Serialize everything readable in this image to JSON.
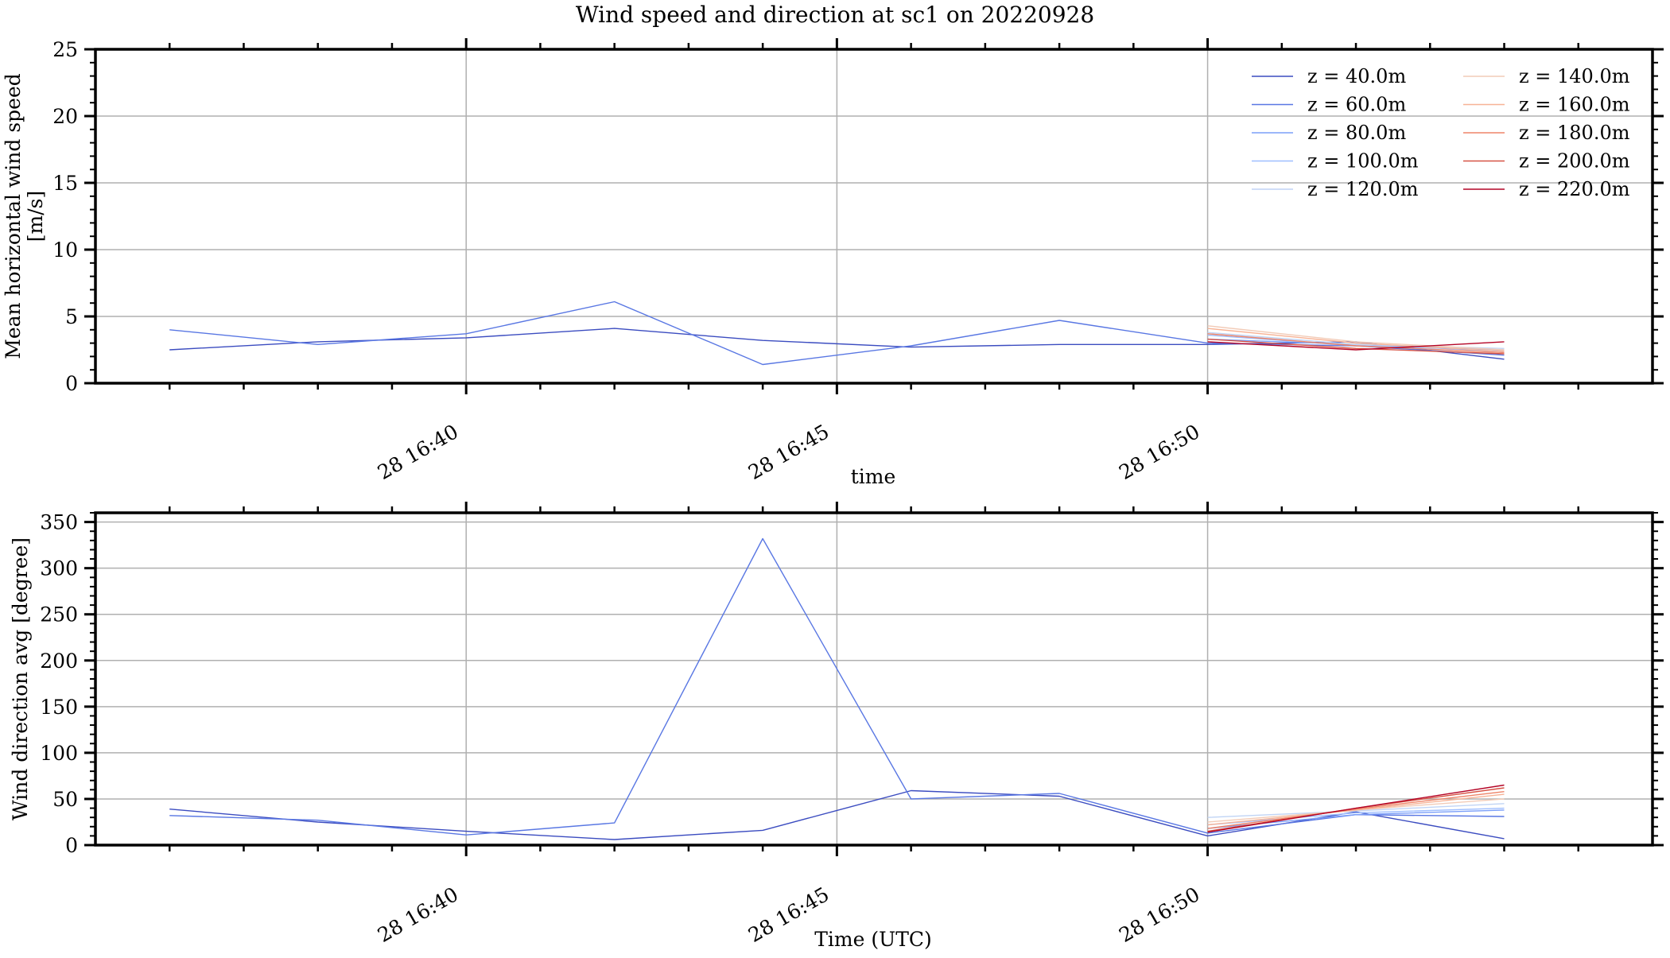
{
  "figure_title": "Wind speed and direction at sc1 on 20220928",
  "colors": {
    "axis": "#000000",
    "grid": "#b0b0b0",
    "series": [
      "#3b4cc0",
      "#5977e3",
      "#7b9ff9",
      "#9ebeff",
      "#c0d4f5",
      "#f2cbb7",
      "#f7b396",
      "#ee8468",
      "#d65244",
      "#b40426"
    ]
  },
  "chart_data": [
    {
      "type": "line",
      "xlabel": "time",
      "ylabel": "Mean horizontal wind speed [m/s]",
      "ylabel_lines": [
        "Mean horizontal wind speed",
        "[m/s]"
      ],
      "x_ticks": [
        "28 16:40",
        "28 16:45",
        "28 16:50"
      ],
      "y_ticks": [
        "0",
        "5",
        "10",
        "15",
        "20",
        "25"
      ],
      "ylim": [
        0,
        25
      ],
      "grid": true,
      "legend": {
        "placement": "top-right",
        "columns": 2,
        "entries": [
          "z = 40.0m",
          "z = 60.0m",
          "z = 80.0m",
          "z = 100.0m",
          "z = 120.0m",
          "z = 140.0m",
          "z = 160.0m",
          "z = 180.0m",
          "z = 200.0m",
          "z = 220.0m"
        ]
      },
      "series": [
        {
          "name": "z = 40.0m",
          "points": [
            [
              "16:36",
              2.5
            ],
            [
              "16:38",
              3.1
            ],
            [
              "16:40",
              3.4
            ],
            [
              "16:42",
              4.1
            ],
            [
              "16:44",
              3.2
            ],
            [
              "16:46",
              2.7
            ],
            [
              "16:48",
              2.9
            ],
            [
              "16:50",
              2.9
            ],
            [
              "16:52",
              3.1
            ],
            [
              "16:54",
              1.8
            ]
          ]
        },
        {
          "name": "z = 60.0m",
          "points": [
            [
              "16:36",
              4.0
            ],
            [
              "16:38",
              2.9
            ],
            [
              "16:40",
              3.7
            ],
            [
              "16:42",
              6.1
            ],
            [
              "16:44",
              1.4
            ],
            [
              "16:46",
              2.8
            ],
            [
              "16:48",
              4.7
            ],
            [
              "16:50",
              3.0
            ],
            [
              "16:52",
              2.8
            ],
            [
              "16:54",
              2.1
            ]
          ]
        },
        {
          "name": "z = 80.0m",
          "points": [
            [
              "16:50",
              3.3
            ],
            [
              "16:52",
              2.9
            ],
            [
              "16:54",
              2.4
            ]
          ]
        },
        {
          "name": "z = 100.0m",
          "points": [
            [
              "16:50",
              3.6
            ],
            [
              "16:52",
              2.8
            ],
            [
              "16:54",
              2.5
            ]
          ]
        },
        {
          "name": "z = 120.0m",
          "points": [
            [
              "16:50",
              3.8
            ],
            [
              "16:52",
              2.9
            ],
            [
              "16:54",
              2.6
            ]
          ]
        },
        {
          "name": "z = 140.0m",
          "points": [
            [
              "16:50",
              4.3
            ],
            [
              "16:52",
              3.1
            ],
            [
              "16:54",
              2.5
            ]
          ]
        },
        {
          "name": "z = 160.0m",
          "points": [
            [
              "16:50",
              4.1
            ],
            [
              "16:52",
              3.0
            ],
            [
              "16:54",
              2.4
            ]
          ]
        },
        {
          "name": "z = 180.0m",
          "points": [
            [
              "16:50",
              3.7
            ],
            [
              "16:52",
              2.8
            ],
            [
              "16:54",
              2.3
            ]
          ]
        },
        {
          "name": "z = 200.0m",
          "points": [
            [
              "16:50",
              3.3
            ],
            [
              "16:52",
              2.6
            ],
            [
              "16:54",
              2.2
            ]
          ]
        },
        {
          "name": "z = 220.0m",
          "points": [
            [
              "16:50",
              3.1
            ],
            [
              "16:52",
              2.5
            ],
            [
              "16:54",
              3.1
            ]
          ]
        }
      ]
    },
    {
      "type": "line",
      "xlabel": "Time (UTC)",
      "ylabel": "Wind direction avg [degree]",
      "ylabel_lines": [
        "Wind direction avg [degree]"
      ],
      "x_ticks": [
        "28 16:40",
        "28 16:45",
        "28 16:50"
      ],
      "y_ticks": [
        "0",
        "50",
        "100",
        "150",
        "200",
        "250",
        "300",
        "350"
      ],
      "ylim": [
        0,
        360
      ],
      "grid": true,
      "series": [
        {
          "name": "z = 40.0m",
          "points": [
            [
              "16:36",
              39
            ],
            [
              "16:38",
              25
            ],
            [
              "16:40",
              15
            ],
            [
              "16:42",
              6
            ],
            [
              "16:44",
              16
            ],
            [
              "16:46",
              59
            ],
            [
              "16:48",
              53
            ],
            [
              "16:50",
              10
            ],
            [
              "16:52",
              36
            ],
            [
              "16:54",
              7
            ]
          ]
        },
        {
          "name": "z = 60.0m",
          "points": [
            [
              "16:36",
              32
            ],
            [
              "16:38",
              27
            ],
            [
              "16:40",
              11
            ],
            [
              "16:42",
              24
            ],
            [
              "16:44",
              332
            ],
            [
              "16:46",
              50
            ],
            [
              "16:48",
              56
            ],
            [
              "16:50",
              13
            ],
            [
              "16:52",
              33
            ],
            [
              "16:54",
              31
            ]
          ]
        },
        {
          "name": "z = 80.0m",
          "points": [
            [
              "16:50",
              18
            ],
            [
              "16:52",
              33
            ],
            [
              "16:54",
              38
            ]
          ]
        },
        {
          "name": "z = 100.0m",
          "points": [
            [
              "16:50",
              22
            ],
            [
              "16:52",
              35
            ],
            [
              "16:54",
              40
            ]
          ]
        },
        {
          "name": "z = 120.0m",
          "points": [
            [
              "16:50",
              30
            ],
            [
              "16:52",
              37
            ],
            [
              "16:54",
              45
            ]
          ]
        },
        {
          "name": "z = 140.0m",
          "points": [
            [
              "16:50",
              25
            ],
            [
              "16:52",
              38
            ],
            [
              "16:54",
              50
            ]
          ]
        },
        {
          "name": "z = 160.0m",
          "points": [
            [
              "16:50",
              22
            ],
            [
              "16:52",
              38
            ],
            [
              "16:54",
              55
            ]
          ]
        },
        {
          "name": "z = 180.0m",
          "points": [
            [
              "16:50",
              18
            ],
            [
              "16:52",
              39
            ],
            [
              "16:54",
              58
            ]
          ]
        },
        {
          "name": "z = 200.0m",
          "points": [
            [
              "16:50",
              15
            ],
            [
              "16:52",
              40
            ],
            [
              "16:54",
              62
            ]
          ]
        },
        {
          "name": "z = 220.0m",
          "points": [
            [
              "16:50",
              14
            ],
            [
              "16:52",
              40
            ],
            [
              "16:54",
              65
            ]
          ]
        }
      ]
    }
  ]
}
